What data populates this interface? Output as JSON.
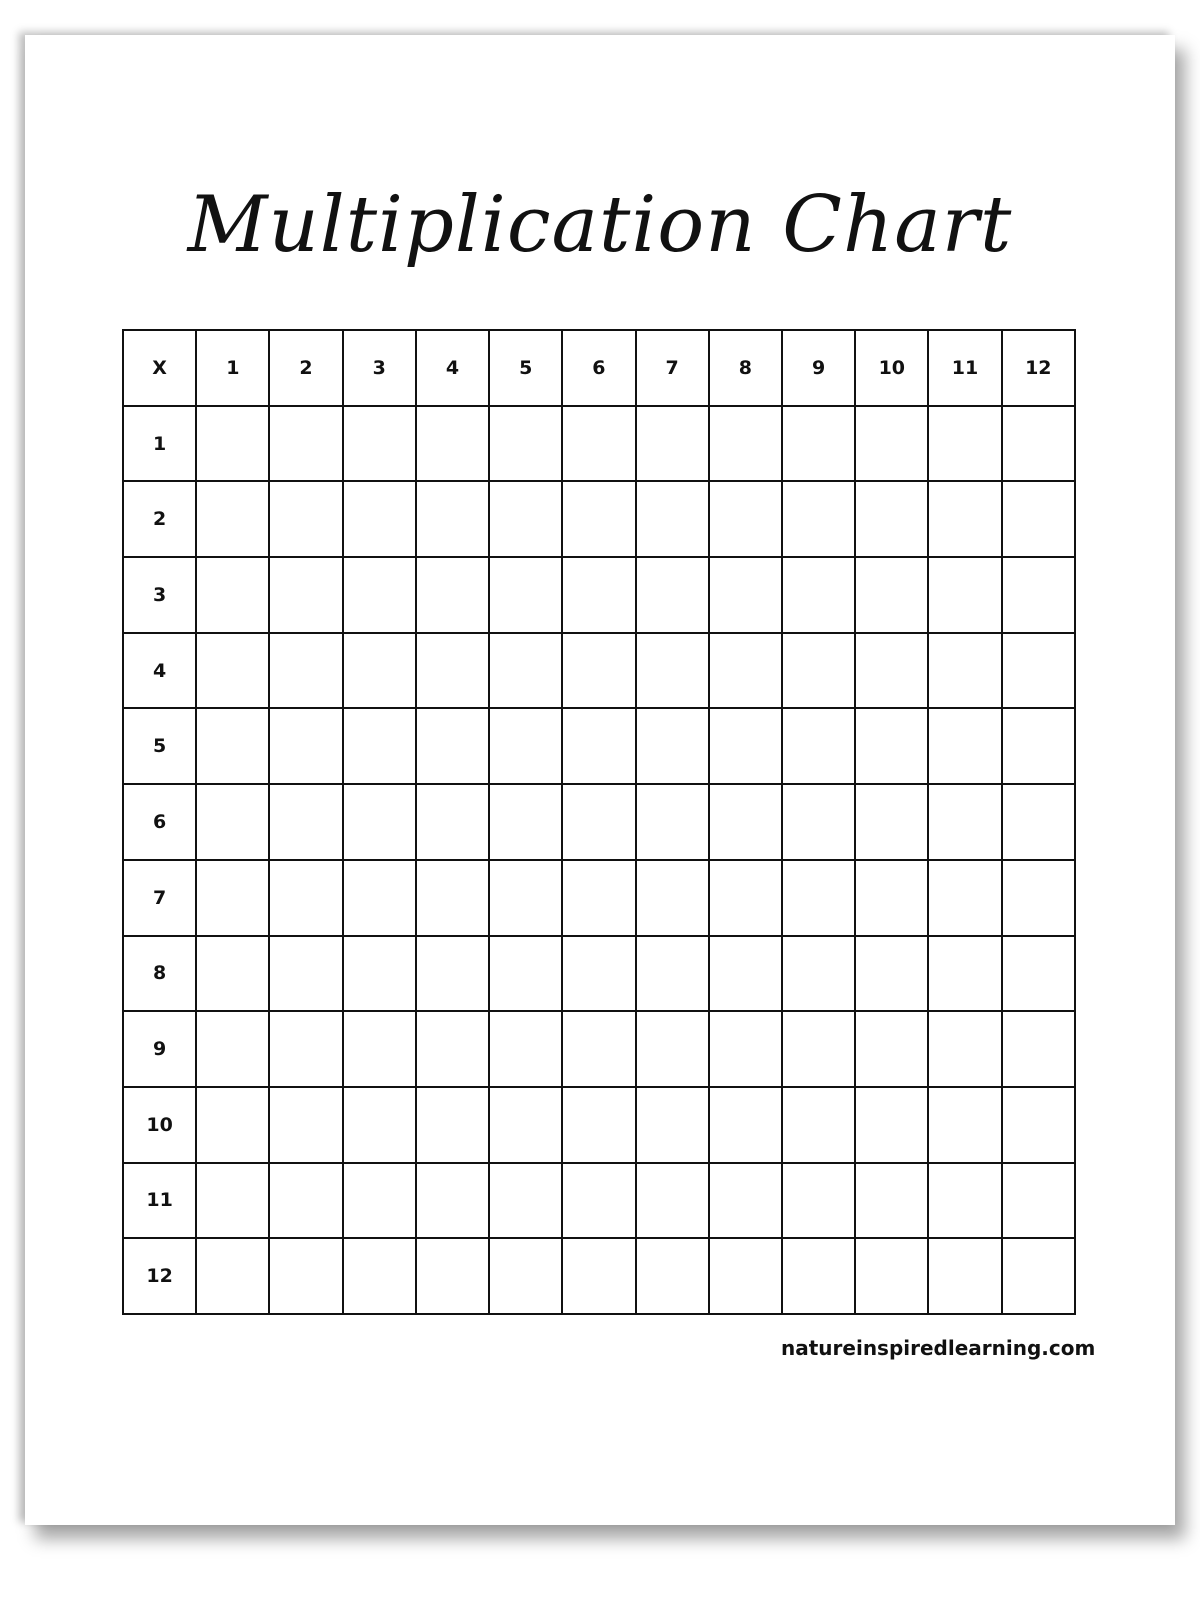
{
  "title": "Multiplication Chart",
  "corner": "X",
  "column_headers": [
    "1",
    "2",
    "3",
    "4",
    "5",
    "6",
    "7",
    "8",
    "9",
    "10",
    "11",
    "12"
  ],
  "row_headers": [
    "1",
    "2",
    "3",
    "4",
    "5",
    "6",
    "7",
    "8",
    "9",
    "10",
    "11",
    "12"
  ],
  "footer": "natureinspiredlearning.com"
}
